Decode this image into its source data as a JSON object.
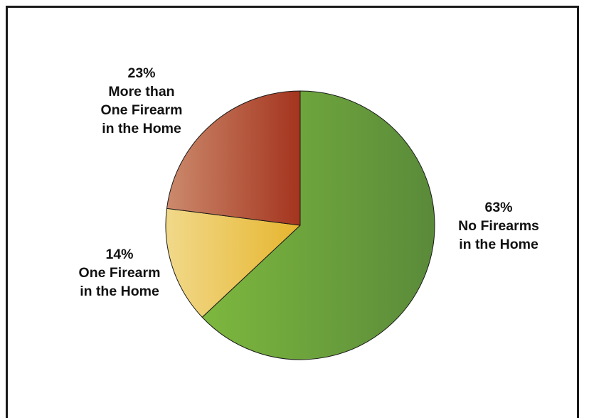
{
  "chart_data": {
    "type": "pie",
    "slices": [
      {
        "value": 63,
        "pct_label": "63%",
        "label_lines": [
          "No Firearms",
          "in the Home"
        ],
        "color_start": "#7db83e",
        "color_end": "#5a8a3a"
      },
      {
        "value": 14,
        "pct_label": "14%",
        "label_lines": [
          "One Firearm",
          "in the Home"
        ],
        "color_start": "#f1d98a",
        "color_end": "#e6b52e"
      },
      {
        "value": 23,
        "pct_label": "23%",
        "label_lines": [
          "More than",
          "One Firearm",
          "in the Home"
        ],
        "color_start": "#cc8a6c",
        "color_end": "#a4341e"
      }
    ],
    "start": "12 o'clock",
    "direction": "clockwise",
    "legend": "none"
  }
}
